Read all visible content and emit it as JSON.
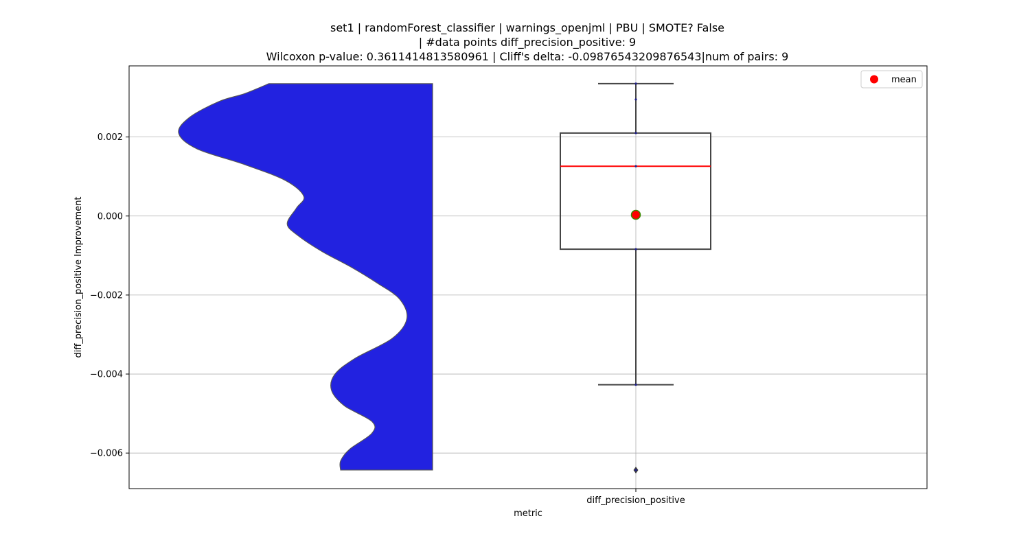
{
  "chart_data": {
    "type": "violin+box",
    "title_lines": [
      "set1 | randomForest_classifier | warnings_openjml | PBU | SMOTE? False",
      "| #data points diff_precision_positive: 9",
      "Wilcoxon p-value: 0.3611414813580961 | Cliff's delta: -0.09876543209876543|num of pairs: 9"
    ],
    "xlabel": "metric",
    "ylabel": "diff_precision_positive Improvement",
    "categories": [
      "diff_precision_positive"
    ],
    "ylim": [
      -0.0069,
      0.0038
    ],
    "yticks": [
      -0.006,
      -0.004,
      -0.002,
      0.0,
      0.002
    ],
    "ytick_labels": [
      "−0.006",
      "−0.004",
      "−0.002",
      "0.000",
      "0.002"
    ],
    "grid": true,
    "legend": {
      "position": "upper right",
      "entries": [
        {
          "label": "mean",
          "marker": "circle",
          "color": "#ff0000"
        }
      ]
    },
    "violin": {
      "fill_color": "#2222e0",
      "edge_color": "#555555",
      "profile": [
        {
          "y": 0.00335,
          "half_width": 0.89
        },
        {
          "y": 0.0031,
          "half_width": 1.02
        },
        {
          "y": 0.0029,
          "half_width": 1.16
        },
        {
          "y": 0.0025,
          "half_width": 1.32
        },
        {
          "y": 0.0021,
          "half_width": 1.38
        },
        {
          "y": 0.0017,
          "half_width": 1.28
        },
        {
          "y": 0.0013,
          "half_width": 1.02
        },
        {
          "y": 0.0009,
          "half_width": 0.8
        },
        {
          "y": 0.0005,
          "half_width": 0.7
        },
        {
          "y": 0.0002,
          "half_width": 0.74
        },
        {
          "y": -0.0002,
          "half_width": 0.79
        },
        {
          "y": -0.0005,
          "half_width": 0.73
        },
        {
          "y": -0.0009,
          "half_width": 0.6
        },
        {
          "y": -0.0013,
          "half_width": 0.44
        },
        {
          "y": -0.0017,
          "half_width": 0.3
        },
        {
          "y": -0.0021,
          "half_width": 0.18
        },
        {
          "y": -0.0026,
          "half_width": 0.14
        },
        {
          "y": -0.0031,
          "half_width": 0.22
        },
        {
          "y": -0.0036,
          "half_width": 0.42
        },
        {
          "y": -0.004,
          "half_width": 0.53
        },
        {
          "y": -0.0044,
          "half_width": 0.55
        },
        {
          "y": -0.0048,
          "half_width": 0.48
        },
        {
          "y": -0.0052,
          "half_width": 0.33
        },
        {
          "y": -0.0055,
          "half_width": 0.33
        },
        {
          "y": -0.0059,
          "half_width": 0.45
        },
        {
          "y": -0.0062,
          "half_width": 0.5
        },
        {
          "y": -0.00643,
          "half_width": 0.5
        }
      ]
    },
    "box": {
      "q1": -0.00084,
      "median": 0.00126,
      "q3": 0.0021,
      "whisker_low": -0.00427,
      "whisker_high": 0.00335,
      "mean": 3e-05,
      "fliers": [
        -0.00643
      ],
      "median_color": "#ff0000",
      "box_edge_color": "#444444",
      "mean_marker_color": "#ff0000",
      "mean_marker_edge": "#3a8a00"
    },
    "points": [
      0.00335,
      0.00295,
      0.0021,
      0.00126,
      3e-05,
      -0.00084,
      -0.00427,
      -0.00643
    ]
  }
}
